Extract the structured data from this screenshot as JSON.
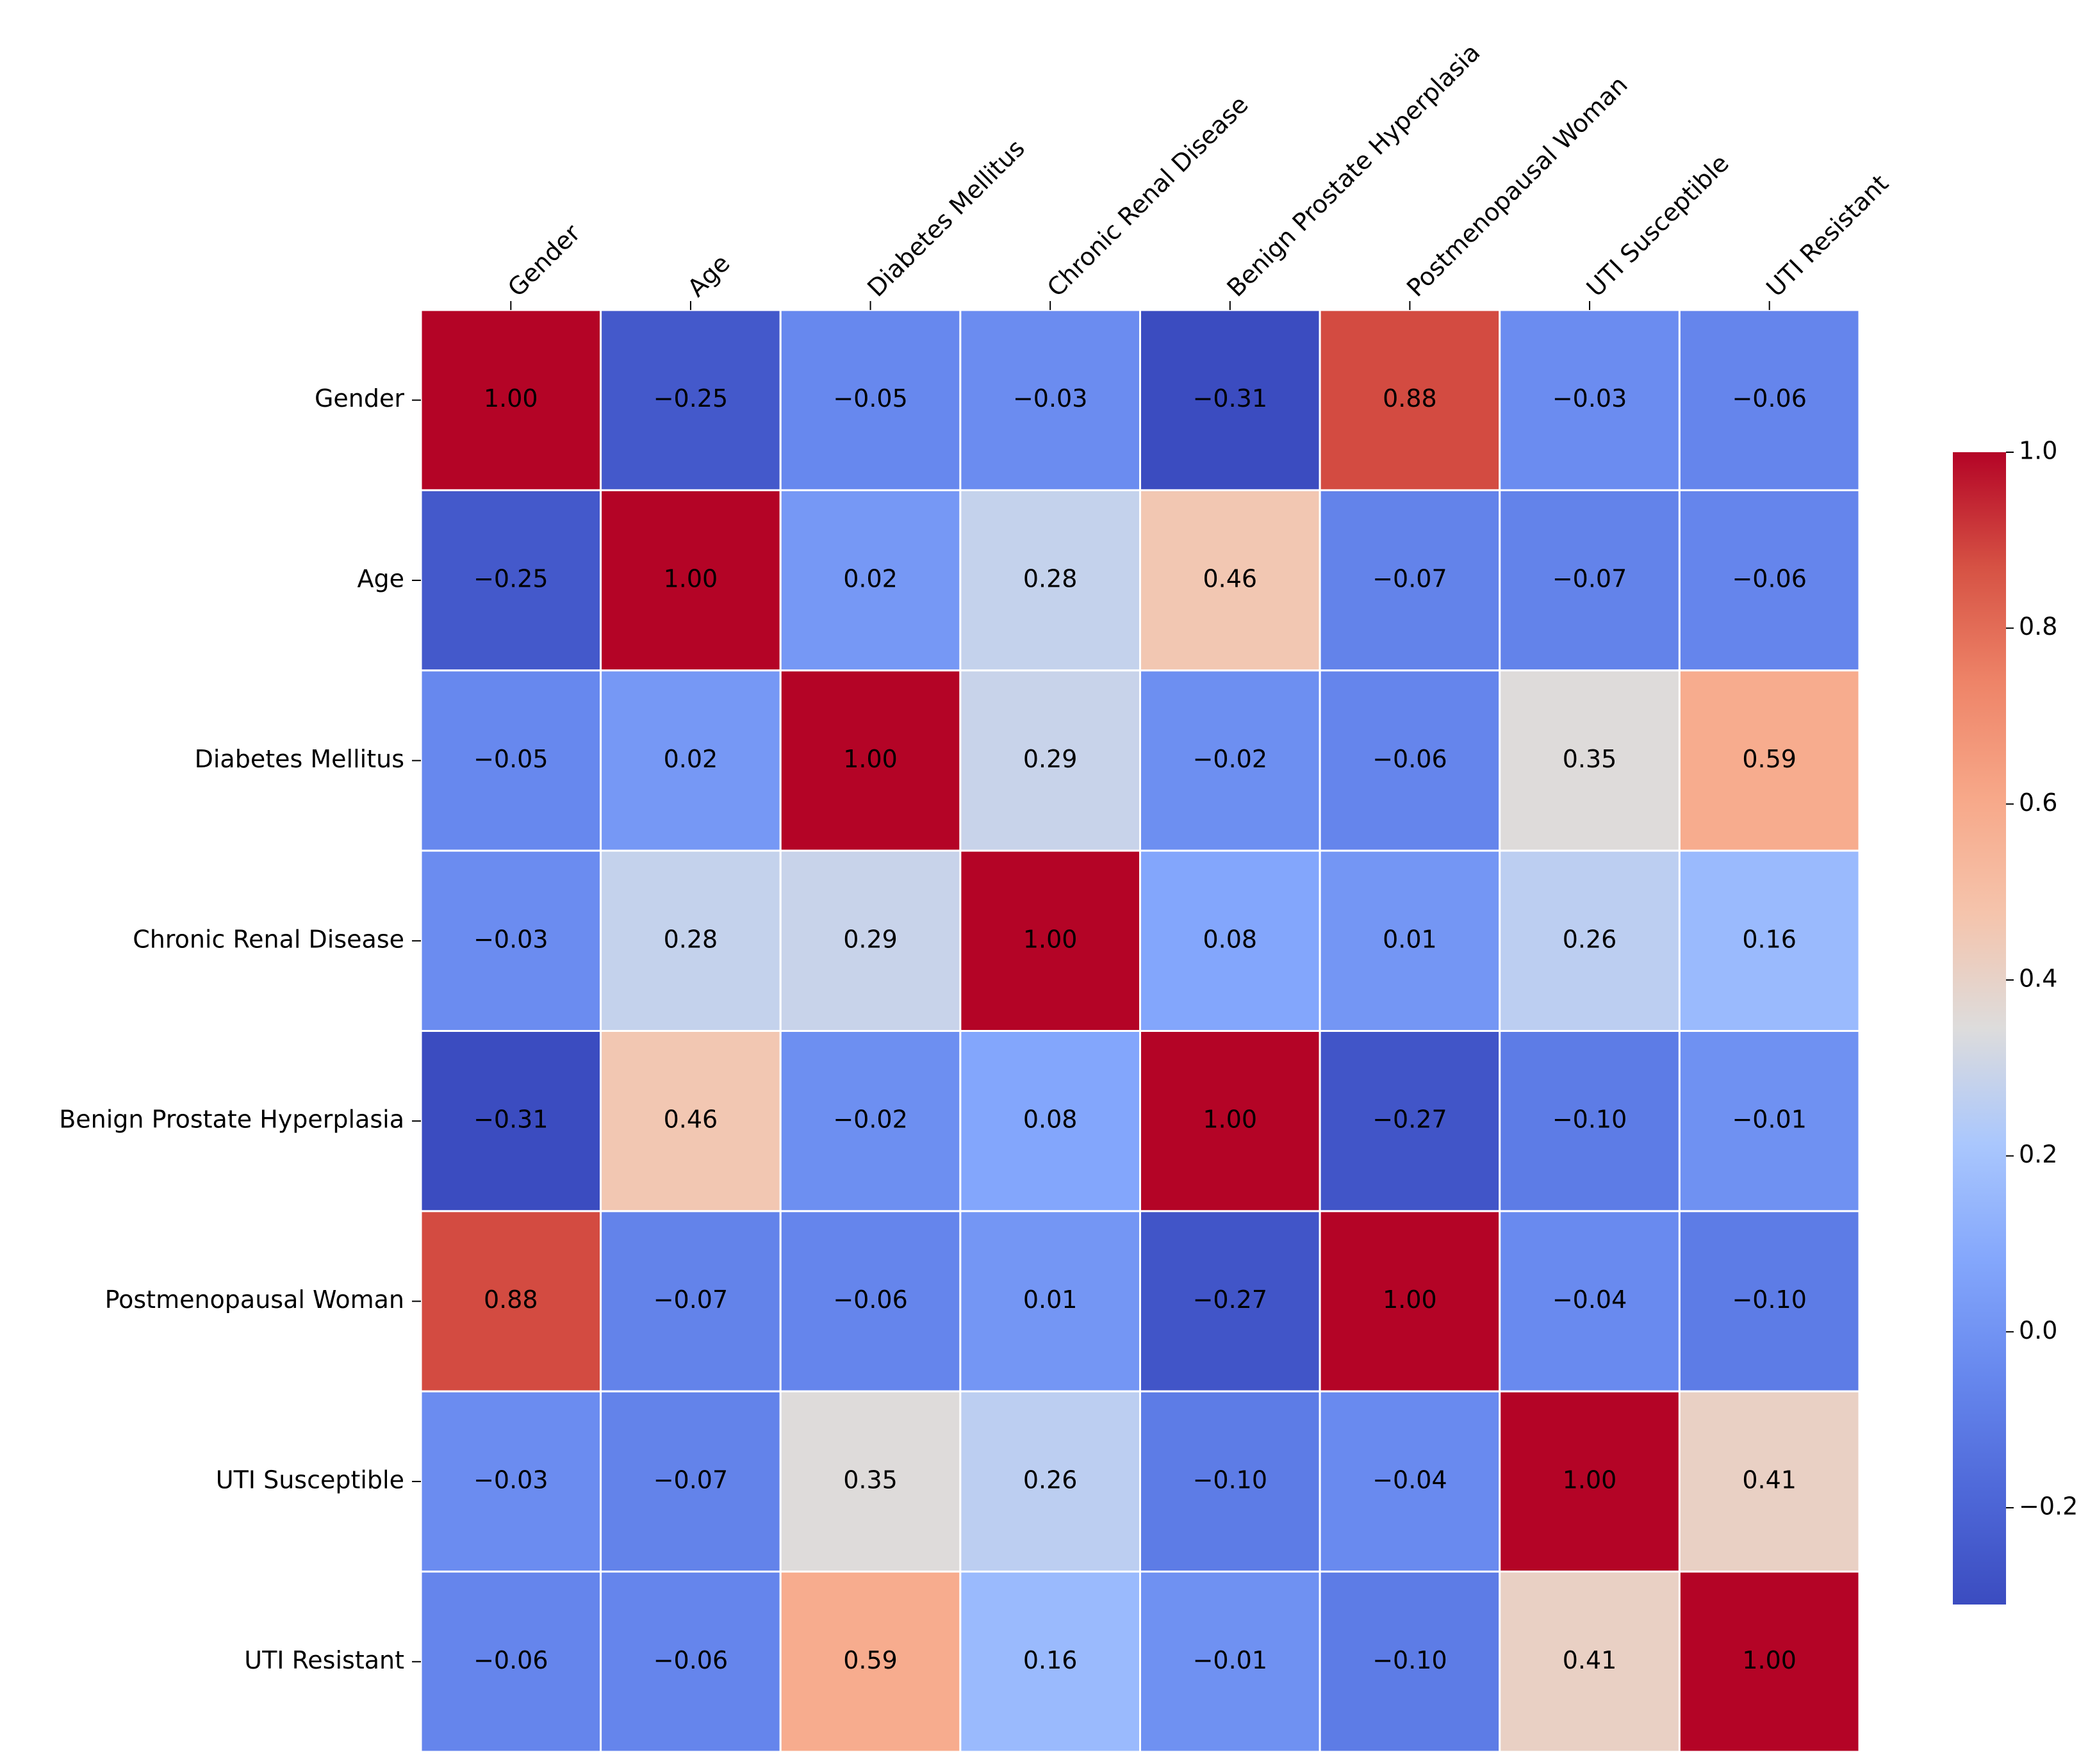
{
  "chart_data": {
    "type": "heatmap",
    "x_categories": [
      "Gender",
      "Age",
      "Diabetes Mellitus",
      "Chronic Renal Disease",
      "Benign Prostate Hyperplasia",
      "Postmenopausal Woman",
      "UTI Susceptible",
      "UTI Resistant"
    ],
    "y_categories": [
      "Gender",
      "Age",
      "Diabetes Mellitus",
      "Chronic Renal Disease",
      "Benign Prostate Hyperplasia",
      "Postmenopausal Woman",
      "UTI Susceptible",
      "UTI Resistant"
    ],
    "values": [
      [
        1.0,
        -0.25,
        -0.05,
        -0.03,
        -0.31,
        0.88,
        -0.03,
        -0.06
      ],
      [
        -0.25,
        1.0,
        0.02,
        0.28,
        0.46,
        -0.07,
        -0.07,
        -0.06
      ],
      [
        -0.05,
        0.02,
        1.0,
        0.29,
        -0.02,
        -0.06,
        0.35,
        0.59
      ],
      [
        -0.03,
        0.28,
        0.29,
        1.0,
        0.08,
        0.01,
        0.26,
        0.16
      ],
      [
        -0.31,
        0.46,
        -0.02,
        0.08,
        1.0,
        -0.27,
        -0.1,
        -0.01
      ],
      [
        0.88,
        -0.07,
        -0.06,
        0.01,
        -0.27,
        1.0,
        -0.04,
        -0.1
      ],
      [
        -0.03,
        -0.07,
        0.35,
        0.26,
        -0.1,
        -0.04,
        1.0,
        0.41
      ],
      [
        -0.06,
        -0.06,
        0.59,
        0.16,
        -0.01,
        -0.1,
        0.41,
        1.0
      ]
    ],
    "value_labels": [
      [
        "1.00",
        "−0.25",
        "−0.05",
        "−0.03",
        "−0.31",
        "0.88",
        "−0.03",
        "−0.06"
      ],
      [
        "−0.25",
        "1.00",
        "0.02",
        "0.28",
        "0.46",
        "−0.07",
        "−0.07",
        "−0.06"
      ],
      [
        "−0.05",
        "0.02",
        "1.00",
        "0.29",
        "−0.02",
        "−0.06",
        "0.35",
        "0.59"
      ],
      [
        "−0.03",
        "0.28",
        "0.29",
        "1.00",
        "0.08",
        "0.01",
        "0.26",
        "0.16"
      ],
      [
        "−0.31",
        "0.46",
        "−0.02",
        "0.08",
        "1.00",
        "−0.27",
        "−0.10",
        "−0.01"
      ],
      [
        "0.88",
        "−0.07",
        "−0.06",
        "0.01",
        "−0.27",
        "1.00",
        "−0.04",
        "−0.10"
      ],
      [
        "−0.03",
        "−0.07",
        "0.35",
        "0.26",
        "−0.10",
        "−0.04",
        "1.00",
        "0.41"
      ],
      [
        "−0.06",
        "−0.06",
        "0.59",
        "0.16",
        "−0.01",
        "−0.10",
        "0.41",
        "1.00"
      ]
    ],
    "colormap": "coolwarm",
    "clim": [
      -0.31,
      1.0
    ],
    "cticks": [
      {
        "value": -0.2,
        "label": "−0.2"
      },
      {
        "value": 0,
        "label": "0.0"
      },
      0.2,
      0.4,
      0.6,
      0.8,
      {
        "value": 1,
        "label": "1.0"
      }
    ]
  }
}
